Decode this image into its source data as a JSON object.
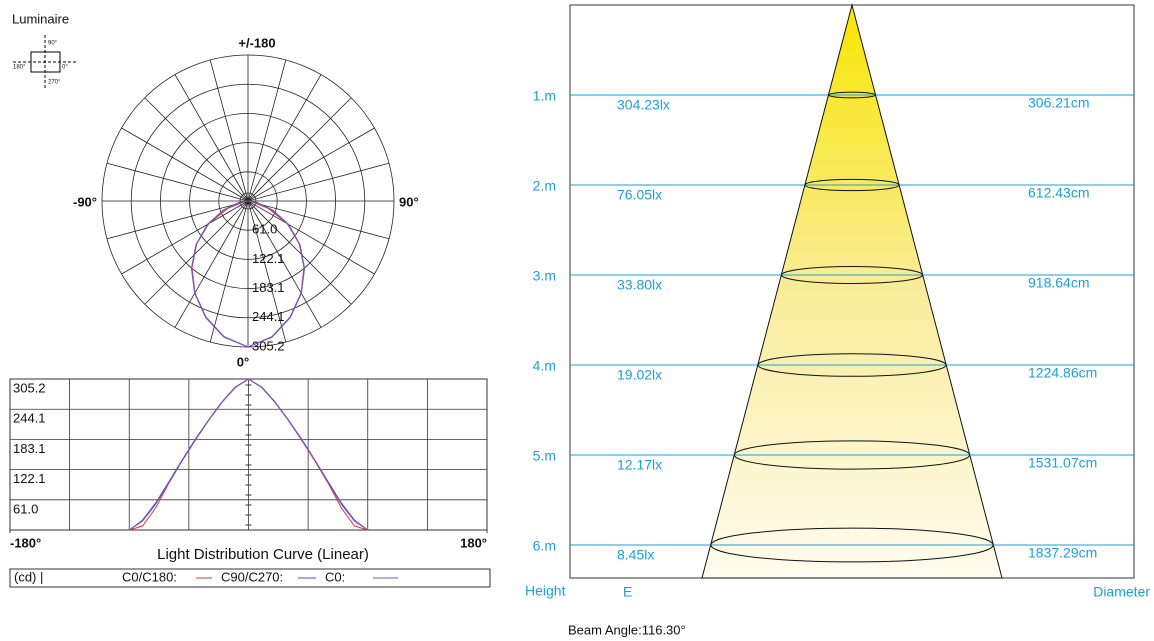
{
  "luminaire": {
    "label": "Luminaire",
    "angle_labels": [
      "90°",
      "180°",
      "0°",
      "270°"
    ]
  },
  "chart_data": [
    {
      "type": "polar",
      "labels": {
        "top": "+/-180",
        "left": "-90°",
        "right": "90°",
        "bottom": "0°"
      },
      "rlim": [
        0,
        305.2
      ],
      "rticks": [
        {
          "value": 61,
          "label": "61.0"
        },
        122.1,
        183.1,
        244.1,
        305.2
      ],
      "x": [
        -90,
        -80,
        -70,
        -60,
        -50,
        -40,
        -30,
        -20,
        -10,
        0,
        10,
        20,
        30,
        40,
        50,
        60,
        70,
        80,
        90
      ],
      "series": [
        {
          "name": "C0/C180:",
          "color": "#d9383a",
          "values": [
            0,
            8,
            45,
            95,
            140,
            182,
            222,
            258,
            288,
            305.2,
            288,
            258,
            222,
            182,
            140,
            95,
            45,
            8,
            0
          ]
        },
        {
          "name": "C90/C270:",
          "color": "#3a5bc7",
          "values": [
            0,
            20,
            55,
            98,
            142,
            184,
            223,
            259,
            289,
            305.2,
            289,
            259,
            223,
            184,
            142,
            98,
            55,
            20,
            0
          ]
        },
        {
          "name": "C0:",
          "color": "#8a4fb0",
          "values": [
            0,
            18,
            52,
            96,
            141,
            183,
            222,
            258,
            288,
            305.2,
            288,
            258,
            222,
            183,
            141,
            96,
            52,
            18,
            0
          ]
        }
      ]
    },
    {
      "type": "line",
      "title": "Light Distribution Curve (Linear)",
      "unit_label": "(cd) |",
      "xlim": [
        -180,
        180
      ],
      "xticks": [
        {
          "value": -180,
          "label": "-180°"
        },
        {
          "value": 180,
          "label": "180°"
        }
      ],
      "ylim": [
        0,
        305.2
      ],
      "yticks": [
        {
          "value": 61,
          "label": "61.0"
        },
        122.1,
        183.1,
        244.1,
        305.2
      ],
      "grid": true
    },
    {
      "type": "cone",
      "categories": [
        "1.m",
        "2.m",
        "3.m",
        "4.m",
        "5.m",
        "6.m"
      ],
      "x_label": "Height",
      "series": [
        {
          "name": "E",
          "values": [
            304.23,
            76.05,
            33.8,
            19.02,
            12.17,
            8.45
          ],
          "value_labels": [
            "304.23lx",
            "76.05lx",
            "33.80lx",
            "19.02lx",
            "12.17lx",
            "8.45lx"
          ]
        },
        {
          "name": "Diameter",
          "values": [
            306.21,
            612.43,
            918.64,
            1224.86,
            1531.07,
            1837.29
          ],
          "value_labels": [
            "306.21cm",
            "612.43cm",
            "918.64cm",
            "1224.86cm",
            "1531.07cm",
            "1837.29cm"
          ]
        }
      ],
      "beam_angle": "Beam Angle:116.30°",
      "color": "#1a9fd6"
    }
  ]
}
